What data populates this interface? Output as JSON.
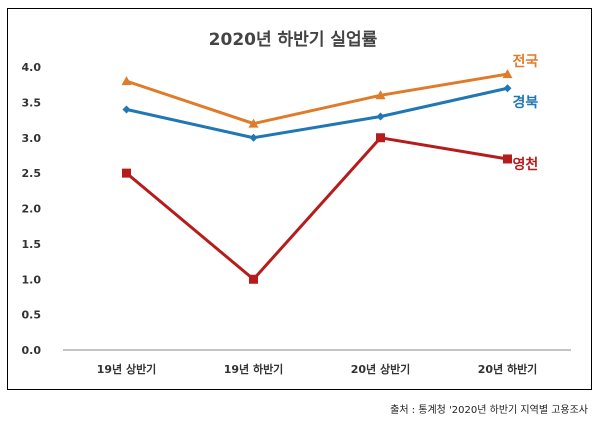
{
  "chart_data": {
    "type": "line",
    "title": "2020년 하반기 실업률",
    "categories": [
      "19년 상반기",
      "19년 하반기",
      "20년 상반기",
      "20년 하반기"
    ],
    "series": [
      {
        "name": "전국",
        "values": [
          3.8,
          3.2,
          3.6,
          3.9
        ],
        "color": "#E07B2A",
        "marker": "triangle"
      },
      {
        "name": "경북",
        "values": [
          3.4,
          3.0,
          3.3,
          3.7
        ],
        "color": "#1F77B4",
        "marker": "diamond"
      },
      {
        "name": "영천",
        "values": [
          2.5,
          1.0,
          3.0,
          2.7
        ],
        "color": "#B71C1C",
        "marker": "square"
      }
    ],
    "y_ticks": [
      "0.0",
      "0.5",
      "1.0",
      "1.5",
      "2.0",
      "2.5",
      "3.0",
      "3.5",
      "4.0"
    ],
    "ylim": [
      0,
      4.0
    ],
    "grid": false,
    "legend": "series labels at right end of each line"
  },
  "source": "출처 : 통계청 '2020년 하반기 지역별 고용조사"
}
